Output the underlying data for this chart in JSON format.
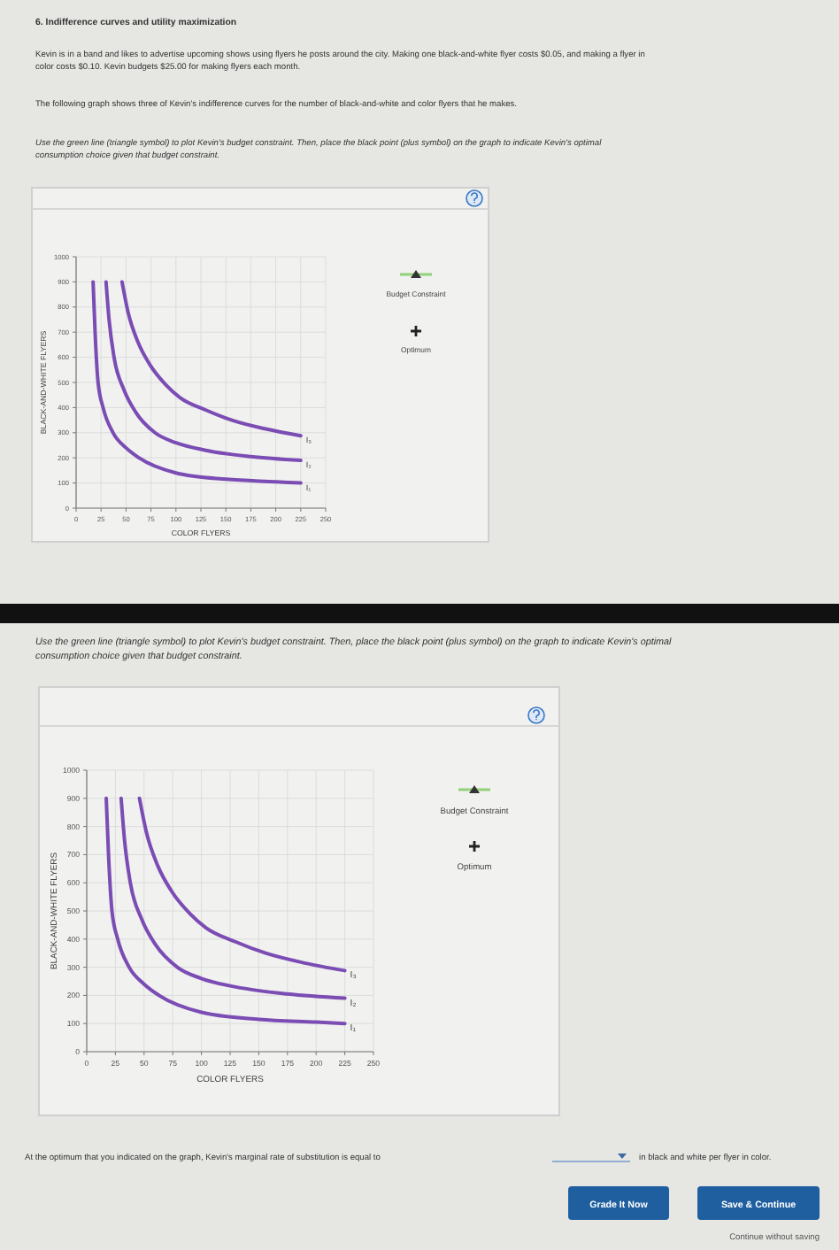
{
  "chart_data": [
    {
      "type": "line",
      "title": "6. Indifference curves and utility maximization",
      "xlabel": "COLOR FLYERS",
      "ylabel": "BLACK-AND-WHITE FLYERS",
      "xlim": [
        0,
        250
      ],
      "ylim": [
        0,
        1000
      ],
      "xticks": [
        0,
        25,
        50,
        75,
        100,
        125,
        150,
        175,
        200,
        225,
        250
      ],
      "yticks": [
        0,
        100,
        200,
        300,
        400,
        500,
        600,
        700,
        800,
        900,
        1000
      ],
      "grid": true,
      "series": [
        {
          "name": "I₁",
          "color": "#7a4cb4",
          "x": [
            17,
            19,
            22,
            27,
            37,
            50,
            63,
            100,
            150,
            200,
            225
          ],
          "values": [
            900,
            700,
            500,
            400,
            300,
            240,
            200,
            140,
            115,
            105,
            100
          ]
        },
        {
          "name": "I₂",
          "color": "#7a4cb4",
          "x": [
            30,
            33,
            38,
            48,
            60,
            79,
            100,
            130,
            175,
            225
          ],
          "values": [
            900,
            750,
            600,
            470,
            380,
            300,
            260,
            230,
            205,
            190
          ]
        },
        {
          "name": "I₃",
          "color": "#7a4cb4",
          "x": [
            46,
            52,
            62,
            74,
            90,
            104,
            130,
            156,
            190,
            225
          ],
          "values": [
            900,
            780,
            660,
            570,
            490,
            440,
            390,
            350,
            315,
            288
          ]
        }
      ],
      "annotations": [
        "Kevin is in a band and likes to advertise upcoming shows using flyers he posts around the city. Making one black-and-white flyer costs $0.05, and making a flyer in color costs $0.10. Kevin budgets $25.00 for making flyers each month.",
        "The following graph shows three of Kevin's indifference curves for the number of black-and-white and color flyers that he makes.",
        "Use the green line (triangle symbol) to plot Kevin's budget constraint. Then, place the black point (plus symbol) on the graph to indicate Kevin's optimal consumption choice given that budget constraint.",
        "Budget Constraint",
        "Optimum"
      ]
    },
    {
      "type": "line",
      "xlabel": "COLOR FLYERS",
      "ylabel": "BLACK-AND-WHITE FLYERS",
      "xlim": [
        0,
        250
      ],
      "ylim": [
        0,
        1000
      ],
      "xticks": [
        0,
        25,
        50,
        75,
        100,
        125,
        150,
        175,
        200,
        225,
        250
      ],
      "yticks": [
        0,
        100,
        200,
        300,
        400,
        500,
        600,
        700,
        800,
        900,
        1000
      ],
      "grid": true,
      "series": [
        {
          "name": "I₁",
          "color": "#7a4cb4",
          "x": [
            17,
            19,
            22,
            27,
            37,
            50,
            63,
            100,
            150,
            200,
            225
          ],
          "values": [
            900,
            700,
            500,
            400,
            300,
            240,
            200,
            140,
            115,
            105,
            100
          ]
        },
        {
          "name": "I₂",
          "color": "#7a4cb4",
          "x": [
            30,
            33,
            38,
            48,
            60,
            79,
            100,
            130,
            175,
            225
          ],
          "values": [
            900,
            750,
            600,
            470,
            380,
            300,
            260,
            230,
            205,
            190
          ]
        },
        {
          "name": "I₃",
          "color": "#7a4cb4",
          "x": [
            46,
            52,
            62,
            74,
            90,
            104,
            130,
            156,
            190,
            225
          ],
          "values": [
            900,
            780,
            660,
            570,
            490,
            440,
            390,
            350,
            315,
            288
          ]
        }
      ],
      "annotations": [
        "Use the green line (triangle symbol) to plot Kevin's budget constraint. Then, place the black point (plus symbol) on the graph to indicate Kevin's optimal consumption choice given that budget constraint.",
        "Budget Constraint",
        "Optimum",
        "At the optimum that you indicated on the graph, Kevin's marginal rate of substitution is equal to",
        "in black and white per flyer in color.",
        "Grade It Now",
        "Save & Continue",
        "Continue without saving"
      ]
    }
  ]
}
